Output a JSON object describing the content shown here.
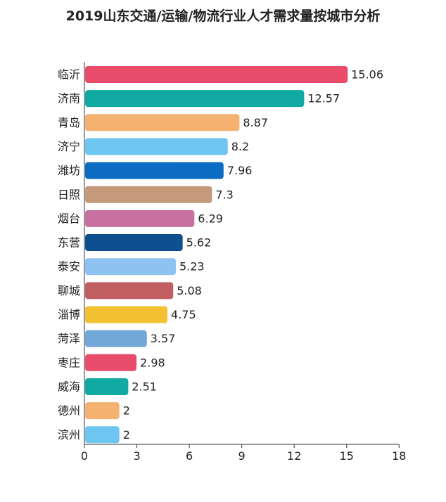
{
  "chart_data": {
    "type": "bar",
    "orientation": "horizontal",
    "title": "2019山东交通/运输/物流行业人才需求量按城市分析",
    "categories": [
      "临沂",
      "济南",
      "青岛",
      "济宁",
      "潍坊",
      "日照",
      "烟台",
      "东营",
      "泰安",
      "聊城",
      "淄博",
      "菏泽",
      "枣庄",
      "威海",
      "德州",
      "滨州"
    ],
    "values": [
      15.06,
      12.57,
      8.87,
      8.2,
      7.96,
      7.3,
      6.29,
      5.62,
      5.23,
      5.08,
      4.75,
      3.57,
      2.98,
      2.51,
      2,
      2
    ],
    "value_labels": [
      "15.06",
      "12.57",
      "8.87",
      "8.2",
      "7.96",
      "7.3",
      "6.29",
      "5.62",
      "5.23",
      "5.08",
      "4.75",
      "3.57",
      "2.98",
      "2.51",
      "2",
      "2"
    ],
    "colors": [
      "#e84c6a",
      "#11aaa3",
      "#f5b16f",
      "#6ec5f0",
      "#0b6cc1",
      "#c49a7b",
      "#c8709f",
      "#0e4f8f",
      "#8ec3f1",
      "#c05e62",
      "#f2c232",
      "#72a7da",
      "#e84c6a",
      "#11aaa3",
      "#f5b16f",
      "#6ec5f0"
    ],
    "xlim": [
      0,
      18
    ],
    "xticks": [
      "0",
      "3",
      "6",
      "9",
      "12",
      "15",
      "18"
    ],
    "xlabel": "",
    "ylabel": "",
    "grid": false,
    "legend": "none"
  }
}
